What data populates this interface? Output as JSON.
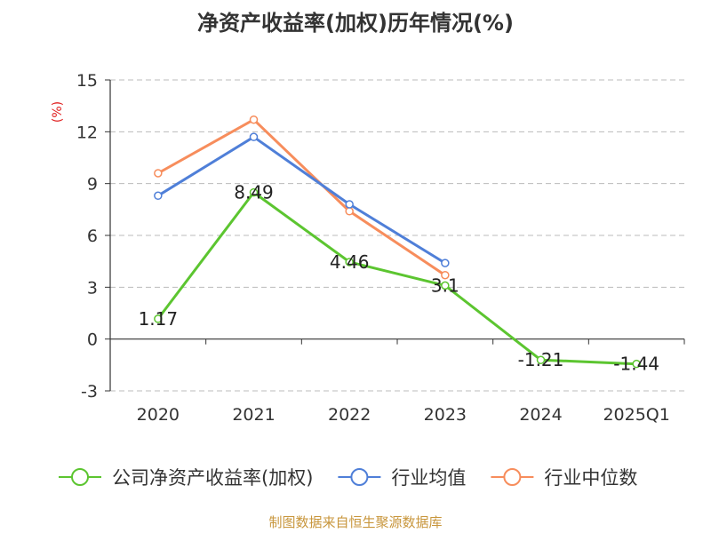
{
  "chart_data": {
    "type": "line",
    "title": "净资产收益率(加权)历年情况(%)",
    "ylabel": "(%)",
    "categories": [
      "2020",
      "2021",
      "2022",
      "2023",
      "2024",
      "2025Q1"
    ],
    "ylim": [
      -3,
      15
    ],
    "yticks": [
      15,
      12,
      9,
      6,
      3,
      0,
      -3
    ],
    "grid": true,
    "legend_position": "bottom",
    "series": [
      {
        "name": "公司净资产收益率(加权)",
        "color": "#5cc530",
        "values": [
          1.17,
          8.49,
          4.46,
          3.1,
          -1.21,
          -1.44
        ],
        "labels": [
          "1.17",
          "8.49",
          "4.46",
          "3.1",
          "-1.21",
          "-1.44"
        ]
      },
      {
        "name": "行业均值",
        "color": "#4f7fd8",
        "values": [
          8.3,
          11.7,
          7.8,
          4.4,
          null,
          null
        ]
      },
      {
        "name": "行业中位数",
        "color": "#f78d5c",
        "values": [
          9.6,
          12.7,
          7.4,
          3.7,
          null,
          null
        ]
      }
    ]
  },
  "footer": {
    "source": "制图数据来自恒生聚源数据库"
  }
}
